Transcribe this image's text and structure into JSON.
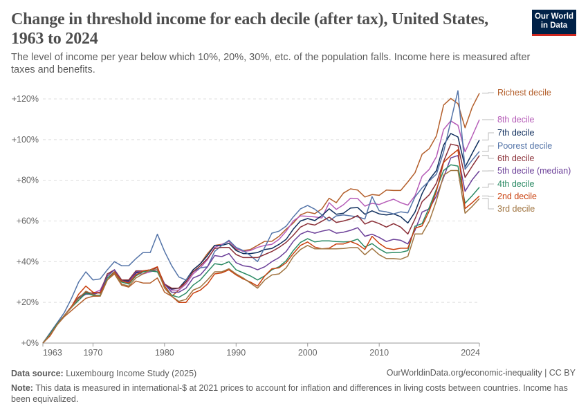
{
  "header": {
    "title": "Change in threshold income for each decile (after tax), United States, 1963 to 2024",
    "subtitle": "The level of income per year below which 10%, 20%, 30%, etc. of the population falls. Income here is measured after taxes and benefits.",
    "logo_text": "Our World in Data"
  },
  "footer": {
    "source_label": "Data source:",
    "source": "Luxembourg Income Study (2025)",
    "url": "OurWorldinData.org/economic-inequality | CC BY",
    "note_label": "Note:",
    "note": "This data is measured in international-$ at 2021 prices to account for inflation and differences in living costs between countries. Income has been equivalized."
  },
  "chart_data": {
    "type": "line",
    "title": "Change in threshold income for each decile (after tax), United States, 1963 to 2024",
    "xlabel": "",
    "ylabel": "",
    "xlim": [
      1963,
      2024
    ],
    "ylim": [
      0,
      120
    ],
    "grid": true,
    "legend": "right (line-end labels)",
    "x_ticks": [
      "1963",
      "1970",
      "1980",
      "1990",
      "2000",
      "2010",
      "2024"
    ],
    "y_ticks": [
      "+0%",
      "+20%",
      "+40%",
      "+60%",
      "+80%",
      "+100%",
      "+120%"
    ],
    "x": [
      1963,
      1964,
      1965,
      1966,
      1967,
      1968,
      1969,
      1970,
      1971,
      1972,
      1973,
      1974,
      1975,
      1976,
      1977,
      1978,
      1979,
      1980,
      1981,
      1982,
      1983,
      1984,
      1985,
      1986,
      1987,
      1988,
      1989,
      1990,
      1991,
      1992,
      1993,
      1994,
      1995,
      1996,
      1997,
      1998,
      1999,
      2000,
      2001,
      2002,
      2003,
      2004,
      2005,
      2006,
      2007,
      2008,
      2009,
      2010,
      2011,
      2012,
      2013,
      2014,
      2015,
      2016,
      2017,
      2018,
      2019,
      2020,
      2021,
      2022,
      2023,
      2024
    ],
    "series": [
      {
        "name": "Richest decile",
        "color": "#b35e2a",
        "values": [
          0,
          4,
          9,
          13,
          16,
          19,
          22,
          23,
          23,
          31,
          34,
          28.5,
          27.5,
          30.5,
          29.5,
          29.5,
          32,
          25,
          23,
          26,
          30,
          36,
          39,
          44,
          48,
          48.5,
          50,
          46,
          45.5,
          46,
          48,
          50,
          50,
          52.5,
          56,
          59,
          63,
          64.4,
          63.6,
          66,
          71.2,
          69,
          73.7,
          75.8,
          75.2,
          71.8,
          73,
          72.6,
          75.2,
          75,
          75,
          79.2,
          83.7,
          92.8,
          95.6,
          101.8,
          117,
          120.2,
          117.7,
          105.8,
          116,
          122.8
        ]
      },
      {
        "name": "8th decile",
        "color": "#b55bb7",
        "values": [
          0,
          4.5,
          9.5,
          13.5,
          18,
          22,
          24,
          24.5,
          26,
          33,
          36,
          30.5,
          30.5,
          34,
          34,
          35,
          36,
          29,
          26,
          26,
          29,
          34,
          37,
          41,
          47,
          48.5,
          50,
          46.5,
          45,
          45.5,
          47,
          48,
          48.5,
          51,
          55,
          60,
          62.5,
          62.3,
          62,
          61.5,
          69,
          65.7,
          68,
          71.2,
          71,
          67.3,
          68.7,
          68.1,
          69.5,
          70.7,
          69,
          67.8,
          72.4,
          82,
          85.4,
          91.6,
          105,
          109.2,
          107,
          94,
          101.8,
          109.8
        ]
      },
      {
        "name": "7th decile",
        "color": "#0e2d5c",
        "values": [
          0,
          4.5,
          9.5,
          13.5,
          18,
          22.5,
          24.5,
          24,
          25,
          33,
          36,
          31,
          30.5,
          34.5,
          35,
          36,
          36,
          29,
          26.5,
          27,
          31,
          36,
          39,
          43,
          48,
          48,
          49,
          45.5,
          44,
          44,
          44.5,
          46,
          46.5,
          48.5,
          51,
          56,
          60,
          61.2,
          60.2,
          62.7,
          66,
          63.3,
          63.8,
          66.4,
          66.6,
          63.3,
          65,
          63.5,
          63,
          63.5,
          62.1,
          59,
          64.4,
          73.5,
          80.3,
          84.8,
          97.3,
          103,
          101.3,
          86.5,
          93.3,
          99.8
        ]
      },
      {
        "name": "Poorest decile",
        "color": "#5474a8",
        "values": [
          0,
          5,
          10,
          15,
          22,
          30,
          35,
          31,
          31.5,
          36,
          40,
          38,
          38,
          41.5,
          44.5,
          44.5,
          53.5,
          45,
          38,
          32.5,
          31,
          35,
          37,
          37.5,
          45,
          48,
          50.5,
          47,
          45.5,
          43,
          40,
          47,
          54,
          55,
          57.5,
          62,
          66,
          67.6,
          65.8,
          63,
          60,
          62.5,
          63,
          62.5,
          62,
          61,
          72,
          65,
          64.5,
          63.5,
          64.5,
          64,
          71.8,
          76.3,
          79.7,
          83,
          94,
          109,
          124,
          85.4,
          90,
          94.2
        ]
      },
      {
        "name": "6th decile",
        "color": "#8a2f37",
        "values": [
          0,
          4.5,
          9.5,
          13.5,
          18,
          22.5,
          25,
          24.5,
          25,
          34,
          36,
          31,
          31,
          35.5,
          35.5,
          36,
          37,
          29,
          27,
          27,
          30,
          35,
          38,
          41.5,
          46.5,
          47,
          47,
          43.5,
          42,
          42,
          42,
          43.5,
          45,
          47,
          49.5,
          53,
          57,
          58.7,
          58,
          59.9,
          61.9,
          59.3,
          60,
          61,
          62.7,
          58.5,
          60,
          58.7,
          57,
          58.7,
          57,
          53.6,
          61,
          69.5,
          72.9,
          78.6,
          89.3,
          97.8,
          97,
          81.4,
          87,
          92.2
        ]
      },
      {
        "name": "5th decile (median)",
        "color": "#6b3f98",
        "values": [
          0,
          4.5,
          9.5,
          13.5,
          18,
          22,
          24,
          24,
          25,
          33,
          36,
          30.5,
          30,
          35,
          35,
          35.5,
          36,
          29,
          25,
          25,
          27,
          32,
          33.5,
          37.5,
          43,
          42.5,
          44,
          39.5,
          38,
          37.5,
          36,
          37.5,
          40,
          42,
          45,
          50,
          53.5,
          55,
          54,
          55,
          55.7,
          54,
          54.5,
          55.4,
          56.7,
          52.5,
          53.5,
          51.9,
          49.9,
          51,
          50.5,
          48.7,
          55.4,
          64.4,
          66,
          72.3,
          81.4,
          91,
          92.2,
          74.6,
          80.3,
          84.6
        ]
      },
      {
        "name": "4th decile",
        "color": "#2b8a64",
        "values": [
          0,
          4.5,
          9.5,
          13.5,
          17.5,
          21,
          24.5,
          23.5,
          23.5,
          32,
          35,
          30,
          29,
          33,
          35,
          35.5,
          35,
          28,
          23.5,
          22.5,
          24.5,
          28.5,
          31,
          35,
          39,
          38.5,
          40,
          36,
          34.5,
          33,
          31,
          33,
          36,
          37.5,
          40.5,
          45.5,
          49.5,
          51.3,
          49.7,
          50.2,
          50.2,
          49.9,
          49.7,
          49.9,
          51.1,
          47.2,
          48.9,
          46.3,
          44.3,
          44.5,
          44.6,
          45.4,
          57.4,
          58.7,
          66.7,
          75.7,
          84.8,
          87.6,
          87,
          68.7,
          72.5,
          76.6
        ]
      },
      {
        "name": "2nd decile",
        "color": "#c9400e",
        "values": [
          0,
          3.5,
          9,
          13.5,
          18,
          24,
          28,
          25,
          24.5,
          31,
          35,
          30.5,
          29.5,
          33.5,
          35.5,
          36,
          37.5,
          28,
          23,
          20,
          20,
          24.5,
          26,
          29,
          34,
          34.5,
          36,
          33.5,
          31.5,
          30,
          28,
          33,
          36.5,
          37,
          39.5,
          44,
          48,
          49.7,
          47.2,
          46.3,
          46.6,
          48.7,
          48.7,
          49.9,
          48.5,
          46,
          52.5,
          49,
          46.6,
          46,
          46.6,
          46.6,
          56.5,
          57.6,
          65,
          74.6,
          88.8,
          92.2,
          95,
          66.1,
          69,
          72.3
        ]
      },
      {
        "name": "3rd decile",
        "color": "#a07440",
        "values": [
          0,
          4,
          9,
          13.5,
          17.5,
          22,
          25.5,
          24,
          23,
          31,
          34.5,
          29,
          28,
          32,
          34,
          36,
          36,
          27,
          23,
          20.5,
          21.5,
          26,
          27.5,
          31,
          35,
          35,
          36.5,
          34,
          32,
          29.5,
          27,
          31,
          33.5,
          34,
          37,
          42.5,
          46,
          48,
          46.3,
          46.3,
          46.3,
          46.3,
          46.5,
          46.9,
          46.9,
          43.4,
          46.5,
          43.4,
          41.5,
          41.5,
          41.2,
          42.6,
          53.6,
          53.6,
          59.9,
          70,
          82.5,
          84.8,
          84.8,
          63.8,
          67.2,
          71
        ]
      }
    ]
  }
}
